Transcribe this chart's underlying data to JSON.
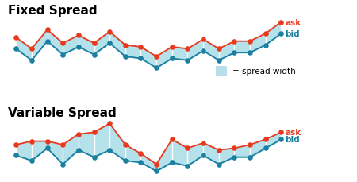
{
  "title1": "Fixed Spread",
  "title2": "Variable Spread",
  "legend_text": "= spread width",
  "ask_color": "#e8391d",
  "bid_color": "#1a7fa0",
  "fill_color": "#a8dce8",
  "fill_alpha": 0.85,
  "line_color_vertical": "#ffffff",
  "background_color": "#ffffff",
  "fixed_spread": 0.12,
  "x": [
    0,
    1,
    2,
    3,
    4,
    5,
    6,
    7,
    8,
    9,
    10,
    11,
    12,
    13,
    14,
    15,
    16,
    17
  ],
  "bid_fixed": [
    0.3,
    0.18,
    0.38,
    0.24,
    0.32,
    0.24,
    0.36,
    0.22,
    0.2,
    0.1,
    0.2,
    0.18,
    0.28,
    0.18,
    0.26,
    0.26,
    0.34,
    0.46
  ],
  "bid_variable": [
    0.3,
    0.24,
    0.38,
    0.2,
    0.36,
    0.28,
    0.36,
    0.24,
    0.22,
    0.12,
    0.22,
    0.18,
    0.3,
    0.2,
    0.28,
    0.28,
    0.38,
    0.48
  ],
  "var_spread": [
    0.12,
    0.22,
    0.08,
    0.22,
    0.18,
    0.28,
    0.3,
    0.18,
    0.1,
    0.08,
    0.26,
    0.2,
    0.14,
    0.16,
    0.1,
    0.14,
    0.1,
    0.08
  ],
  "marker_size": 14,
  "title_fontsize": 11,
  "label_fontsize": 7.5
}
